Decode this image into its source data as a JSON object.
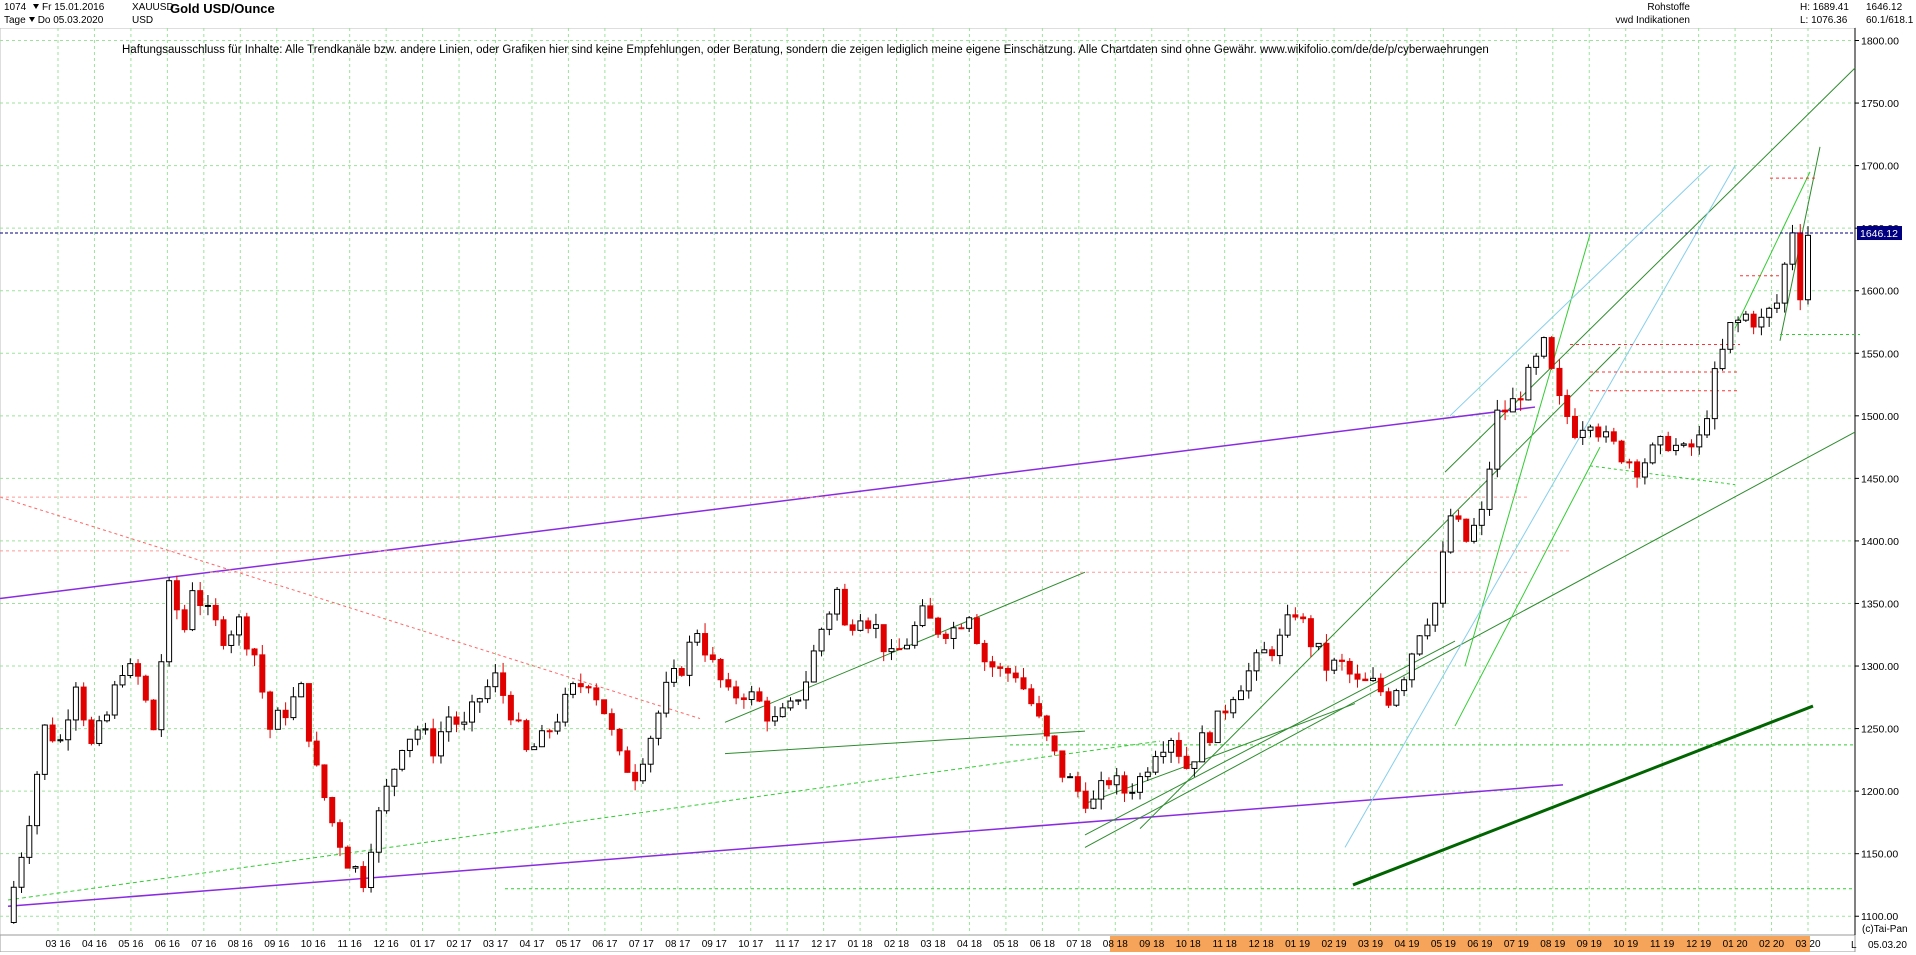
{
  "header": {
    "count": "1074",
    "period": "Tage",
    "date_from": "Fr 15.01.2016",
    "date_to": "Do 05.03.2020",
    "symbol": "XAUUSD",
    "currency": "USD",
    "title": "Gold USD/Ounce",
    "category": "Rohstoffe",
    "source": "vwd Indikationen",
    "high": "H: 1689.41",
    "low": "L: 1076.36",
    "last": "1646.12",
    "last2": "60.1/618.1"
  },
  "disclaimer": "Haftungsausschluss für Inhalte: Alle Trendkanäle bzw. andere Linien, oder Grafiken hier sind keine Empfehlungen, oder Beratung, sondern die zeigen lediglich meine eigene Einschätzung. Alle Chartdaten sind ohne Gewähr.  www.wikifolio.com/de/de/p/cyberwaehrungen",
  "footer": {
    "copyright": "(c)Tai-Pan",
    "end_date": "05.03.20",
    "scale_flag": "L"
  },
  "price_label": "1646.12",
  "chart_data": {
    "type": "candlestick",
    "title": "Gold USD/Ounce",
    "ylim": [
      1085,
      1810
    ],
    "y_ticks": [
      1100,
      1150,
      1200,
      1250,
      1300,
      1350,
      1400,
      1450,
      1500,
      1550,
      1600,
      1650,
      1700,
      1750,
      1800
    ],
    "x_ticks": [
      "03 16",
      "04 16",
      "05 16",
      "06 16",
      "07 16",
      "08 16",
      "09 16",
      "10 16",
      "11 16",
      "12 16",
      "01 17",
      "02 17",
      "03 17",
      "04 17",
      "05 17",
      "06 17",
      "07 17",
      "08 17",
      "09 17",
      "10 17",
      "11 17",
      "12 17",
      "01 18",
      "02 18",
      "03 18",
      "04 18",
      "05 18",
      "06 18",
      "07 18",
      "08 18",
      "09 18",
      "10 18",
      "11 18",
      "12 18",
      "01 19",
      "02 19",
      "03 19",
      "04 19",
      "05 19",
      "06 19",
      "07 19",
      "08 19",
      "09 19",
      "10 19",
      "11 19",
      "12 19",
      "01 20",
      "02 20",
      "03 20"
    ],
    "grid": true,
    "last_price": 1646.12,
    "high": 1689.41,
    "low": 1076.36,
    "close_path": [
      [
        0,
        1095
      ],
      [
        3,
        1180
      ],
      [
        5,
        1250
      ],
      [
        7,
        1240
      ],
      [
        9,
        1290
      ],
      [
        11,
        1235
      ],
      [
        13,
        1260
      ],
      [
        15,
        1300
      ],
      [
        17,
        1290
      ],
      [
        19,
        1250
      ],
      [
        21,
        1360
      ],
      [
        23,
        1330
      ],
      [
        24,
        1365
      ],
      [
        26,
        1340
      ],
      [
        28,
        1325
      ],
      [
        30,
        1335
      ],
      [
        32,
        1310
      ],
      [
        34,
        1250
      ],
      [
        36,
        1265
      ],
      [
        38,
        1280
      ],
      [
        40,
        1215
      ],
      [
        42,
        1175
      ],
      [
        44,
        1145
      ],
      [
        46,
        1130
      ],
      [
        47,
        1160
      ],
      [
        49,
        1200
      ],
      [
        51,
        1240
      ],
      [
        53,
        1250
      ],
      [
        55,
        1235
      ],
      [
        57,
        1260
      ],
      [
        59,
        1250
      ],
      [
        61,
        1275
      ],
      [
        63,
        1290
      ],
      [
        65,
        1265
      ],
      [
        67,
        1230
      ],
      [
        69,
        1240
      ],
      [
        71,
        1260
      ],
      [
        73,
        1280
      ],
      [
        75,
        1290
      ],
      [
        77,
        1265
      ],
      [
        79,
        1225
      ],
      [
        81,
        1215
      ],
      [
        83,
        1245
      ],
      [
        85,
        1280
      ],
      [
        87,
        1300
      ],
      [
        89,
        1330
      ],
      [
        91,
        1300
      ],
      [
        93,
        1275
      ],
      [
        95,
        1280
      ],
      [
        97,
        1270
      ],
      [
        99,
        1255
      ],
      [
        101,
        1265
      ],
      [
        103,
        1290
      ],
      [
        105,
        1330
      ],
      [
        107,
        1360
      ],
      [
        108,
        1330
      ],
      [
        110,
        1345
      ],
      [
        112,
        1330
      ],
      [
        114,
        1305
      ],
      [
        116,
        1320
      ],
      [
        118,
        1340
      ],
      [
        120,
        1330
      ],
      [
        122,
        1330
      ],
      [
        124,
        1345
      ],
      [
        126,
        1305
      ],
      [
        128,
        1295
      ],
      [
        130,
        1295
      ],
      [
        132,
        1270
      ],
      [
        134,
        1240
      ],
      [
        136,
        1215
      ],
      [
        138,
        1200
      ],
      [
        140,
        1190
      ],
      [
        142,
        1210
      ],
      [
        144,
        1200
      ],
      [
        146,
        1210
      ],
      [
        148,
        1235
      ],
      [
        150,
        1245
      ],
      [
        152,
        1220
      ],
      [
        154,
        1240
      ],
      [
        156,
        1255
      ],
      [
        158,
        1280
      ],
      [
        160,
        1295
      ],
      [
        162,
        1310
      ],
      [
        164,
        1320
      ],
      [
        166,
        1345
      ],
      [
        168,
        1320
      ],
      [
        170,
        1300
      ],
      [
        172,
        1300
      ],
      [
        174,
        1285
      ],
      [
        176,
        1285
      ],
      [
        178,
        1275
      ],
      [
        180,
        1295
      ],
      [
        182,
        1330
      ],
      [
        184,
        1350
      ],
      [
        186,
        1420
      ],
      [
        188,
        1400
      ],
      [
        190,
        1420
      ],
      [
        192,
        1500
      ],
      [
        194,
        1510
      ],
      [
        196,
        1530
      ],
      [
        198,
        1555
      ],
      [
        200,
        1510
      ],
      [
        202,
        1490
      ],
      [
        204,
        1500
      ],
      [
        206,
        1480
      ],
      [
        208,
        1470
      ],
      [
        210,
        1460
      ],
      [
        212,
        1470
      ],
      [
        214,
        1480
      ],
      [
        216,
        1470
      ],
      [
        218,
        1480
      ],
      [
        220,
        1530
      ],
      [
        222,
        1570
      ],
      [
        224,
        1580
      ],
      [
        226,
        1575
      ],
      [
        228,
        1590
      ],
      [
        230,
        1650
      ],
      [
        231,
        1600
      ],
      [
        232,
        1646
      ]
    ]
  }
}
